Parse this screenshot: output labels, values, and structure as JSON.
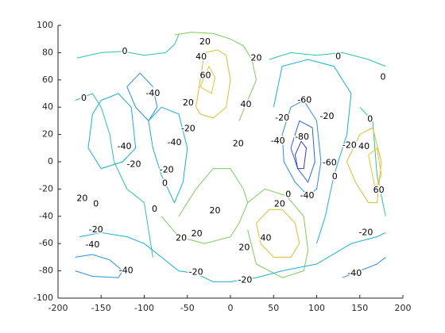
{
  "chart_data": {
    "type": "contour",
    "xlim": [
      -200,
      200
    ],
    "xticks": [
      -200,
      -150,
      -100,
      -50,
      0,
      50,
      100,
      150,
      200
    ],
    "ylim": [
      -100,
      100
    ],
    "yticks": [
      -100,
      -80,
      -60,
      -40,
      -20,
      0,
      20,
      40,
      60,
      80,
      100
    ],
    "levels": [
      -80,
      -60,
      -40,
      -20,
      0,
      20,
      40,
      60
    ],
    "colors": [
      "#3b3bbf",
      "#2f62ee",
      "#2b8de0",
      "#1ab0d0",
      "#2ec4a4",
      "#7ccc5c",
      "#d8bd32",
      "#f2c22c"
    ],
    "contours": [
      {
        "level": 0,
        "x": [
          -178,
          -150,
          -125,
          -100,
          -75,
          -65,
          -60
        ],
        "y": [
          76,
          80,
          81,
          78,
          80,
          86,
          93
        ]
      },
      {
        "level": 20,
        "x": [
          -65,
          -45,
          -20,
          0,
          15,
          25,
          30,
          20,
          10
        ],
        "y": [
          93,
          95,
          94,
          90,
          85,
          75,
          60,
          45,
          30
        ]
      },
      {
        "level": 40,
        "x": [
          -40,
          -30,
          -15,
          -5,
          0,
          -5,
          -20,
          -35,
          -40
        ],
        "y": [
          40,
          80,
          82,
          78,
          60,
          40,
          32,
          35,
          40
        ]
      },
      {
        "level": 60,
        "x": [
          -35,
          -25,
          -18,
          -22,
          -35
        ],
        "y": [
          55,
          70,
          62,
          50,
          55
        ]
      },
      {
        "level": 0,
        "x": [
          45,
          70,
          100,
          130,
          160,
          180
        ],
        "y": [
          75,
          80,
          78,
          80,
          75,
          70
        ]
      },
      {
        "level": -20,
        "x": [
          50,
          60,
          90,
          120,
          140,
          135,
          120,
          110,
          100
        ],
        "y": [
          40,
          70,
          75,
          70,
          50,
          20,
          -10,
          -40,
          -60
        ]
      },
      {
        "level": -40,
        "x": [
          60,
          70,
          85,
          100,
          105,
          100,
          90,
          75,
          62,
          60
        ],
        "y": [
          20,
          40,
          45,
          30,
          0,
          -20,
          -25,
          -15,
          0,
          20
        ]
      },
      {
        "level": -60,
        "x": [
          70,
          80,
          95,
          98,
          90,
          78,
          70
        ],
        "y": [
          10,
          30,
          25,
          0,
          -15,
          -5,
          10
        ]
      },
      {
        "level": -80,
        "x": [
          75,
          82,
          88,
          85,
          78,
          75
        ],
        "y": [
          5,
          15,
          10,
          -5,
          -5,
          5
        ]
      },
      {
        "level": 0,
        "x": [
          -180,
          -160,
          -150,
          -140,
          -135,
          -120,
          -100,
          -95,
          -90
        ],
        "y": [
          45,
          50,
          40,
          20,
          0,
          -20,
          -30,
          -50,
          -70
        ]
      },
      {
        "level": -20,
        "x": [
          -150,
          -130,
          -115,
          -110,
          -125,
          -150,
          -165,
          -160,
          -150
        ],
        "y": [
          45,
          50,
          40,
          10,
          0,
          -5,
          10,
          35,
          45
        ]
      },
      {
        "level": -40,
        "x": [
          -120,
          -105,
          -90,
          -85,
          -95,
          -110,
          -120
        ],
        "y": [
          55,
          65,
          55,
          40,
          30,
          40,
          55
        ]
      },
      {
        "level": -20,
        "x": [
          -95,
          -80,
          -60,
          -50,
          -55,
          -65,
          -80,
          -90,
          -95
        ],
        "y": [
          30,
          40,
          35,
          10,
          -15,
          -30,
          -10,
          10,
          30
        ]
      },
      {
        "level": 20,
        "x": [
          -80,
          -60,
          -30,
          0,
          10,
          20,
          15,
          0,
          -20,
          -40,
          -60
        ],
        "y": [
          -40,
          -55,
          -60,
          -55,
          -45,
          -30,
          -20,
          -5,
          -5,
          -20,
          -40
        ]
      },
      {
        "level": 40,
        "x": [
          30,
          45,
          60,
          75,
          80,
          70,
          50,
          35,
          30
        ],
        "y": [
          -45,
          -35,
          -35,
          -45,
          -60,
          -70,
          -70,
          -60,
          -45
        ]
      },
      {
        "level": 20,
        "x": [
          20,
          40,
          65,
          85,
          90,
          85,
          60,
          30,
          20
        ],
        "y": [
          -30,
          -20,
          -25,
          -40,
          -65,
          -80,
          -85,
          -75,
          -50
        ]
      },
      {
        "level": -20,
        "x": [
          -175,
          -150,
          -120,
          -100,
          -80,
          -60,
          -40,
          -20,
          0,
          30,
          60,
          100,
          140,
          170,
          180
        ],
        "y": [
          -55,
          -52,
          -55,
          -60,
          -70,
          -80,
          -82,
          -88,
          -88,
          -85,
          -80,
          -75,
          -60,
          -55,
          -52
        ]
      },
      {
        "level": -40,
        "x": [
          -180,
          -160,
          -140,
          -125,
          -130,
          -160,
          -180
        ],
        "y": [
          -70,
          -68,
          -72,
          -80,
          -85,
          -84,
          -80
        ]
      },
      {
        "level": -40,
        "x": [
          130,
          150,
          170,
          180
        ],
        "y": [
          -85,
          -80,
          -75,
          -70
        ]
      },
      {
        "level": 0,
        "x": [
          150,
          165,
          170,
          180
        ],
        "y": [
          40,
          30,
          -10,
          -40
        ]
      },
      {
        "level": 40,
        "x": [
          135,
          150,
          165,
          175,
          170,
          160,
          145,
          135
        ],
        "y": [
          0,
          20,
          25,
          0,
          -30,
          -30,
          -15,
          0
        ]
      },
      {
        "level": 60,
        "x": [
          160,
          170,
          175,
          168,
          160
        ],
        "y": [
          5,
          10,
          -10,
          -20,
          5
        ]
      }
    ],
    "labels": [
      {
        "x": -29.5,
        "y": 87.8,
        "value": 20
      },
      {
        "x": -122.6,
        "y": 80.8,
        "value": 0
      },
      {
        "x": -34,
        "y": 76.7,
        "value": 40
      },
      {
        "x": 30,
        "y": 76,
        "value": 20
      },
      {
        "x": 125,
        "y": 77,
        "value": 0
      },
      {
        "x": -29,
        "y": 63,
        "value": 60
      },
      {
        "x": 177,
        "y": 62,
        "value": 0
      },
      {
        "x": -90,
        "y": 50,
        "value": -40
      },
      {
        "x": -170,
        "y": 46.5,
        "value": 0
      },
      {
        "x": -49,
        "y": 43,
        "value": 20
      },
      {
        "x": 18,
        "y": 42,
        "value": 40
      },
      {
        "x": 86,
        "y": 45,
        "value": -60
      },
      {
        "x": 162,
        "y": 31,
        "value": 0
      },
      {
        "x": 60,
        "y": 32,
        "value": -20
      },
      {
        "x": 112,
        "y": 33,
        "value": -20
      },
      {
        "x": -49,
        "y": 24,
        "value": -20
      },
      {
        "x": -65,
        "y": 14,
        "value": -40
      },
      {
        "x": 83,
        "y": 18,
        "value": -80
      },
      {
        "x": 55,
        "y": 15,
        "value": -40
      },
      {
        "x": -123,
        "y": 11,
        "value": -40
      },
      {
        "x": 9,
        "y": 13,
        "value": 20
      },
      {
        "x": 138,
        "y": 12,
        "value": -20
      },
      {
        "x": 155,
        "y": 11,
        "value": 40
      },
      {
        "x": -112,
        "y": -2,
        "value": -20
      },
      {
        "x": 115,
        "y": -1,
        "value": -60
      },
      {
        "x": 121,
        "y": -11,
        "value": 0
      },
      {
        "x": -74,
        "y": -6,
        "value": -20
      },
      {
        "x": -76,
        "y": -16,
        "value": 0
      },
      {
        "x": 172,
        "y": -21,
        "value": 60
      },
      {
        "x": -172,
        "y": -27,
        "value": 20
      },
      {
        "x": -156,
        "y": -31,
        "value": 0
      },
      {
        "x": 89,
        "y": -25,
        "value": -40
      },
      {
        "x": 67,
        "y": -24,
        "value": 0
      },
      {
        "x": 57,
        "y": -31,
        "value": 20
      },
      {
        "x": -88,
        "y": -35,
        "value": 0
      },
      {
        "x": -18,
        "y": -36,
        "value": 20
      },
      {
        "x": -156,
        "y": -50,
        "value": -20
      },
      {
        "x": 157,
        "y": -52,
        "value": -20
      },
      {
        "x": -57,
        "y": -56,
        "value": 20
      },
      {
        "x": -39,
        "y": -53,
        "value": 20
      },
      {
        "x": 41,
        "y": -56,
        "value": 40
      },
      {
        "x": -160,
        "y": -61,
        "value": -40
      },
      {
        "x": 16,
        "y": -63,
        "value": 20
      },
      {
        "x": -121,
        "y": -80,
        "value": -40
      },
      {
        "x": -40,
        "y": -81,
        "value": -20
      },
      {
        "x": 144,
        "y": -82,
        "value": -40
      },
      {
        "x": 17,
        "y": -87,
        "value": -20
      }
    ]
  }
}
